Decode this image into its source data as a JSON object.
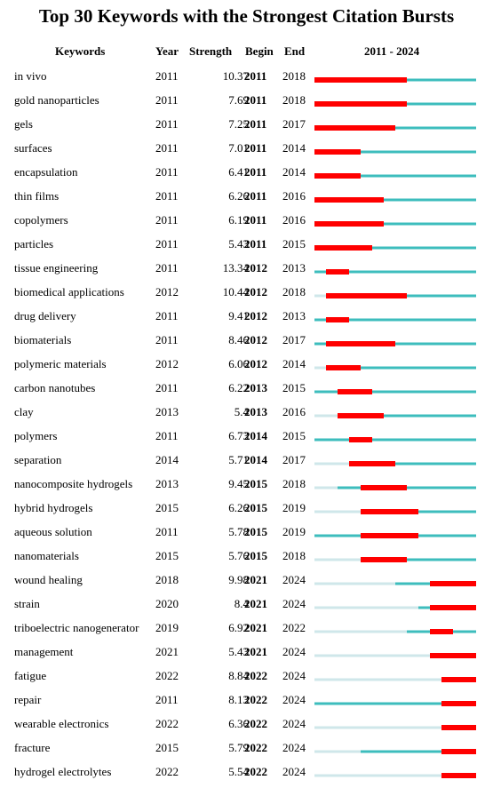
{
  "chart_data": {
    "type": "table",
    "title": "Top 30 Keywords with the Strongest Citation Bursts",
    "columns": [
      "Keywords",
      "Year",
      "Strength",
      "Begin",
      "End",
      "2011 - 2024"
    ],
    "timeline": {
      "start": 2011,
      "end": 2024
    },
    "colors": {
      "burst": "#ff0000",
      "active": "#3dbdbd",
      "inactive": "#cfe7ea"
    },
    "rows": [
      {
        "keyword": "in vivo",
        "year": 2011,
        "strength": "10.37",
        "begin": 2011,
        "end": 2018
      },
      {
        "keyword": "gold nanoparticles",
        "year": 2011,
        "strength": "7.69",
        "begin": 2011,
        "end": 2018
      },
      {
        "keyword": "gels",
        "year": 2011,
        "strength": "7.25",
        "begin": 2011,
        "end": 2017
      },
      {
        "keyword": "surfaces",
        "year": 2011,
        "strength": "7.01",
        "begin": 2011,
        "end": 2014
      },
      {
        "keyword": "encapsulation",
        "year": 2011,
        "strength": "6.41",
        "begin": 2011,
        "end": 2014
      },
      {
        "keyword": "thin films",
        "year": 2011,
        "strength": "6.26",
        "begin": 2011,
        "end": 2016
      },
      {
        "keyword": "copolymers",
        "year": 2011,
        "strength": "6.19",
        "begin": 2011,
        "end": 2016
      },
      {
        "keyword": "particles",
        "year": 2011,
        "strength": "5.43",
        "begin": 2011,
        "end": 2015
      },
      {
        "keyword": "tissue engineering",
        "year": 2011,
        "strength": "13.34",
        "begin": 2012,
        "end": 2013
      },
      {
        "keyword": "biomedical applications",
        "year": 2012,
        "strength": "10.44",
        "begin": 2012,
        "end": 2018
      },
      {
        "keyword": "drug delivery",
        "year": 2011,
        "strength": "9.41",
        "begin": 2012,
        "end": 2013
      },
      {
        "keyword": "biomaterials",
        "year": 2011,
        "strength": "8.46",
        "begin": 2012,
        "end": 2017
      },
      {
        "keyword": "polymeric materials",
        "year": 2012,
        "strength": "6.06",
        "begin": 2012,
        "end": 2014
      },
      {
        "keyword": "carbon nanotubes",
        "year": 2011,
        "strength": "6.22",
        "begin": 2013,
        "end": 2015
      },
      {
        "keyword": "clay",
        "year": 2013,
        "strength": "5.4",
        "begin": 2013,
        "end": 2016
      },
      {
        "keyword": "polymers",
        "year": 2011,
        "strength": "6.73",
        "begin": 2014,
        "end": 2015
      },
      {
        "keyword": "separation",
        "year": 2014,
        "strength": "5.71",
        "begin": 2014,
        "end": 2017
      },
      {
        "keyword": "nanocomposite hydrogels",
        "year": 2013,
        "strength": "9.45",
        "begin": 2015,
        "end": 2018
      },
      {
        "keyword": "hybrid hydrogels",
        "year": 2015,
        "strength": "6.26",
        "begin": 2015,
        "end": 2019
      },
      {
        "keyword": "aqueous solution",
        "year": 2011,
        "strength": "5.78",
        "begin": 2015,
        "end": 2019
      },
      {
        "keyword": "nanomaterials",
        "year": 2015,
        "strength": "5.76",
        "begin": 2015,
        "end": 2018
      },
      {
        "keyword": "wound healing",
        "year": 2018,
        "strength": "9.98",
        "begin": 2021,
        "end": 2024
      },
      {
        "keyword": "strain",
        "year": 2020,
        "strength": "8.4",
        "begin": 2021,
        "end": 2024
      },
      {
        "keyword": "triboelectric nanogenerator",
        "year": 2019,
        "strength": "6.92",
        "begin": 2021,
        "end": 2022
      },
      {
        "keyword": "management",
        "year": 2021,
        "strength": "5.43",
        "begin": 2021,
        "end": 2024
      },
      {
        "keyword": "fatigue",
        "year": 2022,
        "strength": "8.84",
        "begin": 2022,
        "end": 2024
      },
      {
        "keyword": "repair",
        "year": 2011,
        "strength": "8.13",
        "begin": 2022,
        "end": 2024
      },
      {
        "keyword": "wearable electronics",
        "year": 2022,
        "strength": "6.36",
        "begin": 2022,
        "end": 2024
      },
      {
        "keyword": "fracture",
        "year": 2015,
        "strength": "5.79",
        "begin": 2022,
        "end": 2024
      },
      {
        "keyword": "hydrogel electrolytes",
        "year": 2022,
        "strength": "5.54",
        "begin": 2022,
        "end": 2024
      }
    ]
  }
}
